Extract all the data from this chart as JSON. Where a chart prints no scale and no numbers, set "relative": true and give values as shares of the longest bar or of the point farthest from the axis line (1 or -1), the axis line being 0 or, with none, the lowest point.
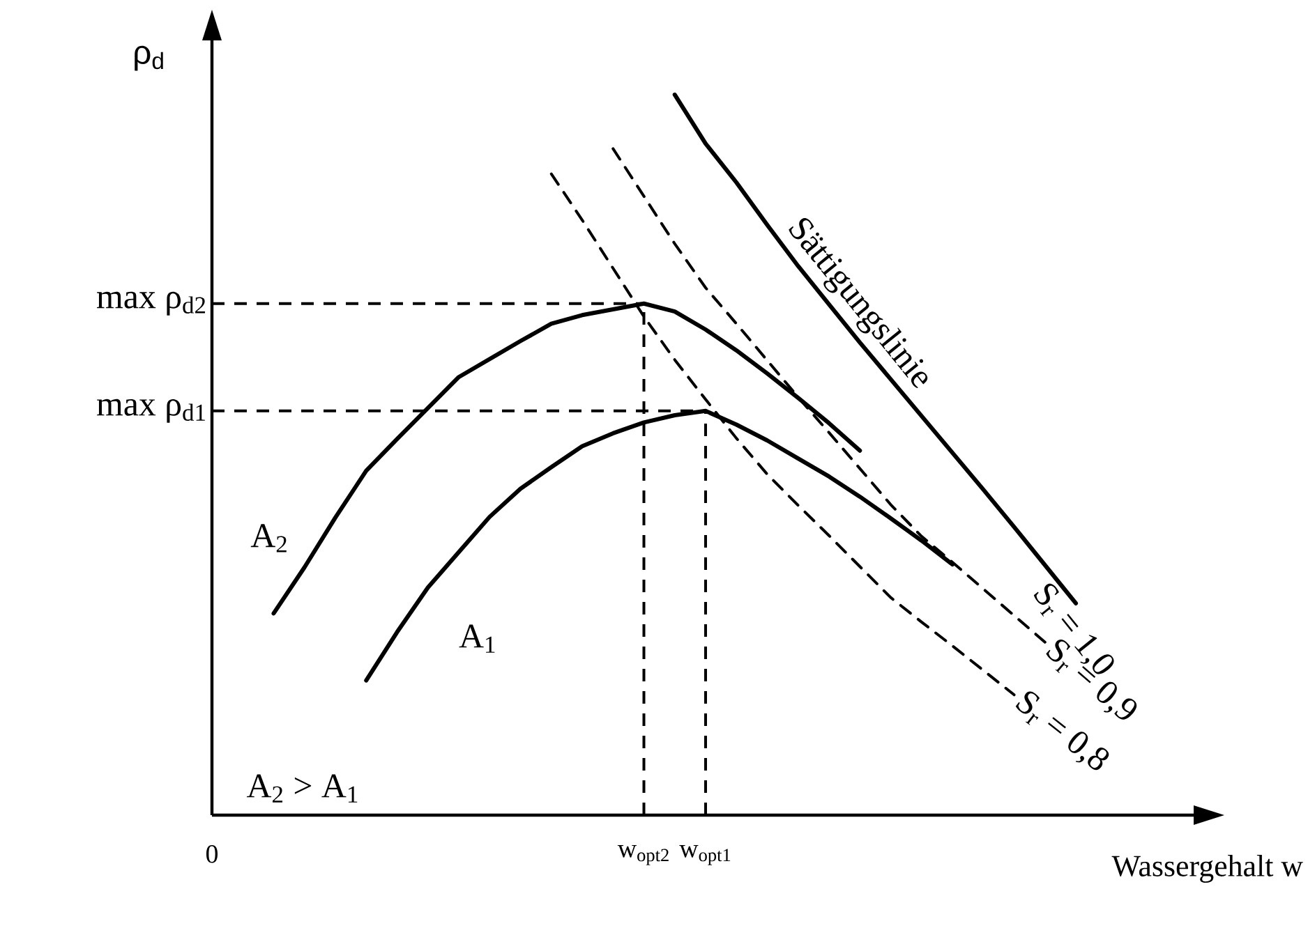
{
  "chart_data": {
    "type": "line",
    "relative": true,
    "xlabel": "Wassergehalt w",
    "ylabel": "ρ$_{d}$",
    "categories": [
      "0",
      null,
      null,
      null,
      null,
      null,
      null,
      null,
      null,
      null,
      null,
      null,
      null,
      null,
      "w$_{opt2}$",
      null,
      "w$_{opt1}$",
      null,
      null,
      null,
      null,
      null,
      null,
      null,
      null,
      null,
      null,
      null,
      null,
      null,
      null,
      null,
      null
    ],
    "line_style": "solid",
    "color": "#000000",
    "grid": false,
    "series": [
      {
        "name": "A$_{2}$",
        "values": [
          null,
          null,
          0.28,
          0.344,
          0.413,
          0.478,
          0.522,
          0.565,
          0.608,
          0.633,
          0.658,
          0.682,
          0.694,
          0.702,
          0.71,
          0.699,
          0.674,
          0.645,
          0.613,
          0.579,
          0.544,
          0.506,
          null,
          null,
          null,
          null,
          null,
          null,
          null,
          null,
          null,
          null,
          null
        ]
      },
      {
        "name": "A$_{1}$",
        "values": [
          null,
          null,
          null,
          null,
          null,
          0.187,
          0.254,
          0.316,
          0.365,
          0.414,
          0.453,
          0.483,
          0.512,
          0.53,
          0.545,
          0.555,
          0.561,
          0.542,
          0.52,
          0.495,
          0.47,
          0.442,
          0.412,
          0.381,
          0.348,
          null,
          null,
          null,
          null,
          null,
          null,
          null,
          null
        ]
      },
      {
        "name": "S$_{r}$ = 1,0",
        "values": [
          null,
          null,
          null,
          null,
          null,
          null,
          null,
          null,
          null,
          null,
          null,
          null,
          null,
          null,
          null,
          1.0,
          0.932,
          0.878,
          0.819,
          0.762,
          0.709,
          0.656,
          0.605,
          0.554,
          0.503,
          0.452,
          0.4,
          0.347,
          0.294,
          null,
          null,
          null,
          null
        ]
      },
      {
        "name": "S$_{r}$ = 0,9",
        "line_style": "dashed",
        "values": [
          null,
          null,
          null,
          null,
          null,
          null,
          null,
          null,
          null,
          null,
          null,
          null,
          null,
          0.925,
          0.859,
          0.793,
          0.732,
          0.682,
          0.631,
          0.58,
          0.531,
          0.481,
          0.431,
          0.387,
          0.351,
          0.314,
          0.277,
          0.24,
          null,
          null,
          null,
          null,
          null
        ]
      },
      {
        "name": "S$_{r}$ = 0,8",
        "line_style": "dashed",
        "values": [
          null,
          null,
          null,
          null,
          null,
          null,
          null,
          null,
          null,
          null,
          null,
          0.89,
          0.826,
          0.759,
          0.692,
          0.632,
          0.577,
          0.523,
          0.473,
          0.43,
          0.388,
          0.345,
          0.302,
          0.268,
          0.235,
          0.201,
          0.167,
          null,
          null,
          null,
          null,
          null,
          null
        ]
      }
    ],
    "ref_lines": [
      {
        "axis": "y",
        "value": 0.71,
        "label": "max ρ$_{d2}$",
        "line_style": "dashed"
      },
      {
        "axis": "y",
        "value": 0.561,
        "label": "max ρ$_{d1}$",
        "line_style": "dashed"
      },
      {
        "axis": "x",
        "value": "w$_{opt2}$",
        "line_style": "dashed"
      },
      {
        "axis": "x",
        "value": "w$_{opt1}$",
        "line_style": "dashed"
      }
    ],
    "annotations": [
      "Sättigungslinie",
      "A$_{2}$ > A$_{1}$"
    ]
  }
}
